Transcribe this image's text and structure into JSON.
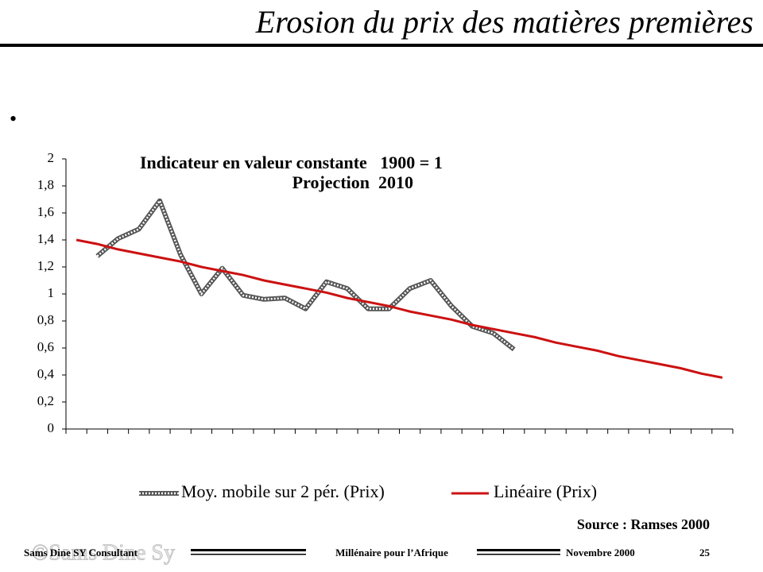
{
  "title": "Erosion du prix des matières premières",
  "bullet": "•",
  "chart_data": {
    "type": "line",
    "title": [
      "Indicateur en valeur constante   1900 = 1",
      "Projection  2010"
    ],
    "categories": [
      null,
      null,
      null,
      null,
      null,
      null,
      null,
      null,
      null,
      null,
      null,
      null,
      null,
      null,
      null,
      null,
      null,
      null,
      null,
      null,
      null,
      null,
      null,
      null,
      null,
      null,
      null,
      null,
      null,
      null,
      null,
      null
    ],
    "series": [
      {
        "name": "Moy. mobile sur 2 pér. (Prix)",
        "color": "#808080",
        "style": "hatched",
        "values": [
          null,
          1.28,
          1.41,
          1.48,
          1.69,
          1.29,
          1.0,
          1.19,
          0.99,
          0.96,
          0.97,
          0.89,
          1.09,
          1.04,
          0.89,
          0.89,
          1.04,
          1.1,
          0.91,
          0.76,
          0.71,
          0.59,
          null,
          null,
          null,
          null,
          null,
          null,
          null,
          null,
          null,
          null
        ]
      },
      {
        "name": "Linéaire (Prix)",
        "color": "#cc1111",
        "style": "solid",
        "values": [
          1.4,
          1.37,
          1.33,
          1.3,
          1.27,
          1.24,
          1.2,
          1.17,
          1.14,
          1.1,
          1.07,
          1.04,
          1.01,
          0.97,
          0.94,
          0.91,
          0.87,
          0.84,
          0.81,
          0.77,
          0.74,
          0.71,
          0.68,
          0.64,
          0.61,
          0.58,
          0.54,
          0.51,
          0.48,
          0.45,
          0.41,
          0.38
        ]
      }
    ],
    "ylim": [
      0,
      2
    ],
    "yticks": [
      0,
      {
        "value": 0.2,
        "label": "0,2"
      },
      {
        "value": 0.4,
        "label": "0,4"
      },
      {
        "value": 0.6,
        "label": "0,6"
      },
      {
        "value": 0.8,
        "label": "0,8"
      },
      1,
      {
        "value": 1.2,
        "label": "1,2"
      },
      {
        "value": 1.4,
        "label": "1,4"
      },
      {
        "value": 1.6,
        "label": "1,6"
      },
      {
        "value": 1.8,
        "label": "1,8"
      },
      2
    ],
    "grid": false,
    "legend": "bottom"
  },
  "source": "Source : Ramses 2000",
  "footer": {
    "left": "Sams Dine SY Consultant",
    "center": "Millénaire pour l’Afrique",
    "right": "Novembre 2000",
    "page": 25
  },
  "watermark": "©Sams Dine Sy"
}
